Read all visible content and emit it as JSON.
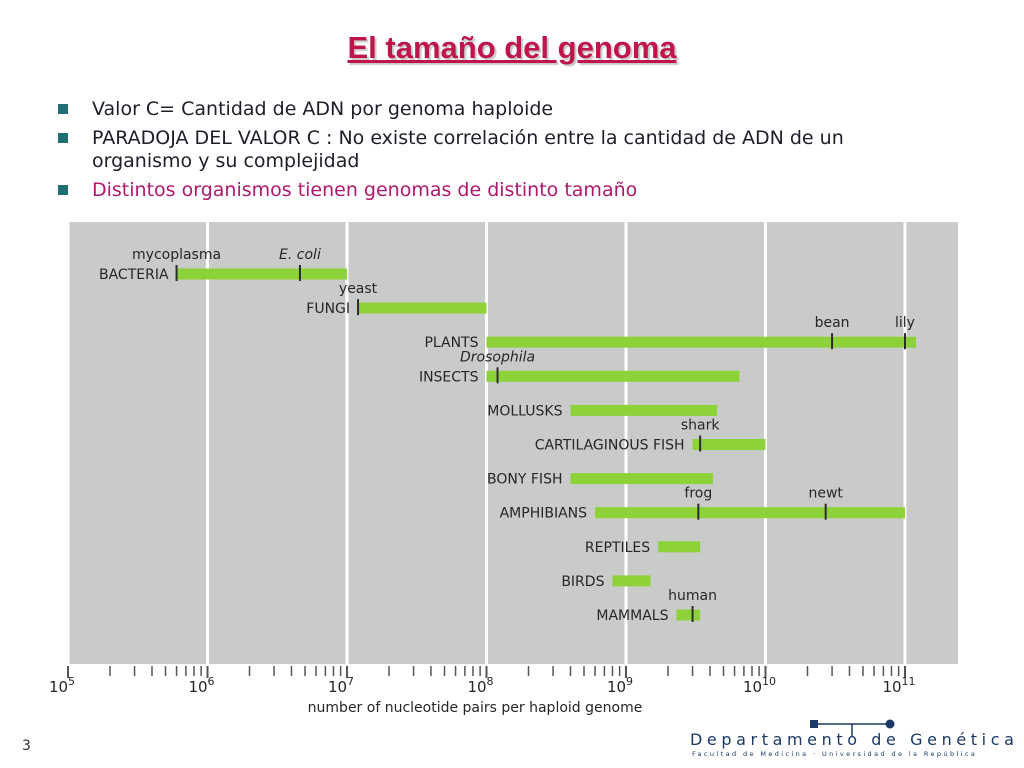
{
  "slide": {
    "title": "El tamaño del genoma",
    "bullets": [
      {
        "text": "Valor C= Cantidad de ADN por genoma haploide",
        "color": "#1e1e28"
      },
      {
        "text": "PARADOJA DEL VALOR C : No existe correlación entre la cantidad de ADN de un organismo y su complejidad",
        "color": "#1e1e28"
      },
      {
        "text": "Distintos organismos tienen genomas de distinto tamaño",
        "color": "#b0176e"
      }
    ],
    "page_number": "3",
    "footer": {
      "department": "Departamento de Genética",
      "subtitle": "Facultad de Medicina · Universidad de la República"
    }
  },
  "colors": {
    "bar": "#8ed23a",
    "plot_background": "#c9cbc8",
    "grid": "#ffffff",
    "title": "#c0154a",
    "bullet_marker": "#1f6e74"
  },
  "chart_data": {
    "type": "bar",
    "orientation": "horizontal-range",
    "xscale": "log",
    "xlabel": "number of nucleotide pairs per haploid genome",
    "xlim_exponents": [
      5,
      11
    ],
    "x_tick_labels": [
      {
        "base": "10",
        "exp": "5"
      },
      {
        "base": "10",
        "exp": "6"
      },
      {
        "base": "10",
        "exp": "7"
      },
      {
        "base": "10",
        "exp": "8"
      },
      {
        "base": "10",
        "exp": "9"
      },
      {
        "base": "10",
        "exp": "10"
      },
      {
        "base": "10",
        "exp": "11"
      }
    ],
    "grid": true,
    "categories": [
      {
        "label": "BACTERIA",
        "min": 600000,
        "max": 10000000,
        "markers": [
          {
            "label": "mycoplasma",
            "value": 600000,
            "italic": false
          },
          {
            "label": "E. coli",
            "value": 4600000,
            "italic": true
          }
        ]
      },
      {
        "label": "FUNGI",
        "min": 12000000,
        "max": 100000000,
        "markers": [
          {
            "label": "yeast",
            "value": 12000000,
            "italic": false
          }
        ]
      },
      {
        "label": "PLANTS",
        "min": 100000000,
        "max": 120000000000,
        "markers": [
          {
            "label": "bean",
            "value": 30000000000,
            "italic": false
          },
          {
            "label": "lily",
            "value": 100000000000,
            "italic": false
          }
        ]
      },
      {
        "label": "INSECTS",
        "min": 100000000,
        "max": 6500000000,
        "markers": [
          {
            "label": "Drosophila",
            "value": 120000000,
            "italic": true
          }
        ]
      },
      {
        "label": "MOLLUSKS",
        "min": 400000000,
        "max": 4500000000,
        "markers": []
      },
      {
        "label": "CARTILAGINOUS FISH",
        "min": 3000000000,
        "max": 10000000000,
        "markers": [
          {
            "label": "shark",
            "value": 3400000000,
            "italic": false
          }
        ]
      },
      {
        "label": "BONY FISH",
        "min": 400000000,
        "max": 4200000000,
        "markers": []
      },
      {
        "label": "AMPHIBIANS",
        "min": 600000000,
        "max": 100000000000,
        "markers": [
          {
            "label": "frog",
            "value": 3300000000,
            "italic": false
          },
          {
            "label": "newt",
            "value": 27000000000,
            "italic": false
          }
        ]
      },
      {
        "label": "REPTILES",
        "min": 1700000000,
        "max": 3400000000,
        "markers": []
      },
      {
        "label": "BIRDS",
        "min": 800000000,
        "max": 1500000000,
        "markers": []
      },
      {
        "label": "MAMMALS",
        "min": 2300000000,
        "max": 3400000000,
        "markers": [
          {
            "label": "human",
            "value": 3000000000,
            "italic": false
          }
        ]
      }
    ]
  }
}
